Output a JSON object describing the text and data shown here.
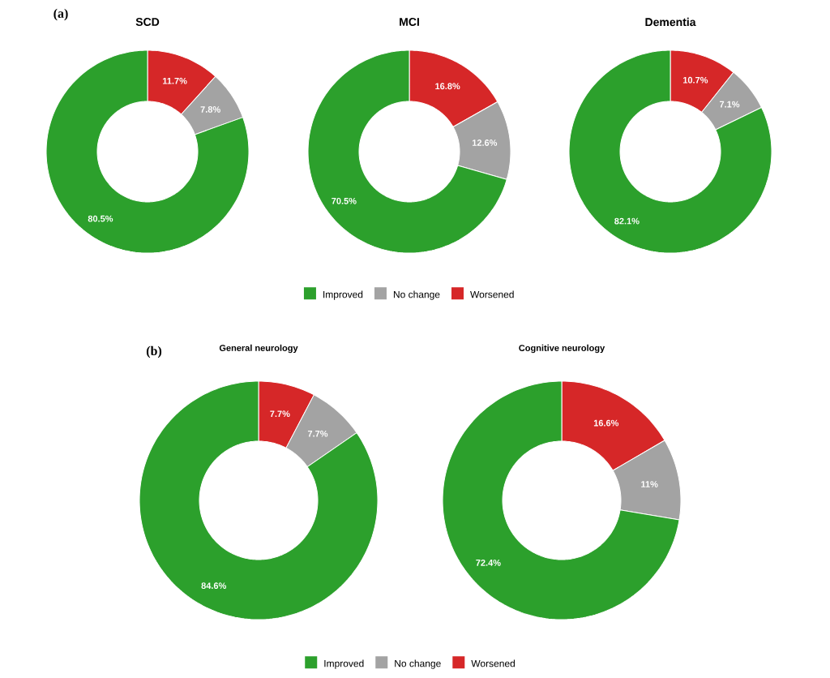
{
  "chart_data": [
    {
      "type": "donut",
      "title": "SCD",
      "annotations": [
        "(a)"
      ],
      "categories": [
        null,
        null,
        null
      ],
      "values": [
        11.7,
        7.8,
        80.5
      ],
      "value_labels": [
        "11.7%",
        "7.8%",
        "80.5%"
      ],
      "colors": [
        "#d62728",
        "#a3a3a3",
        "#2ca02c"
      ]
    },
    {
      "type": "donut",
      "title": "MCI",
      "categories": [
        "Worsened",
        "No change",
        "Improved"
      ],
      "values": [
        16.8,
        12.6,
        70.5
      ],
      "value_labels": [
        "16.8%",
        "12.6%",
        "70.5%"
      ],
      "colors": [
        "#d62728",
        "#a3a3a3",
        "#2ca02c"
      ],
      "legend": "bottom"
    },
    {
      "type": "donut",
      "title": "Dementia",
      "categories": [
        null,
        null,
        null
      ],
      "values": [
        10.7,
        7.1,
        82.1
      ],
      "value_labels": [
        "10.7%",
        "7.1%",
        "82.1%"
      ],
      "colors": [
        "#d62728",
        "#a3a3a3",
        "#2ca02c"
      ]
    },
    {
      "type": "donut",
      "title": "General neurology",
      "annotations": [
        "(b)"
      ],
      "categories": [
        "Worsened",
        "No change",
        "Improved"
      ],
      "values": [
        7.7,
        7.7,
        84.6
      ],
      "value_labels": [
        "7.7%",
        "7.7%",
        "84.6%"
      ],
      "colors": [
        "#d62728",
        "#a3a3a3",
        "#2ca02c"
      ],
      "legend": "bottom"
    },
    {
      "type": "donut",
      "title": "Cognitive neurology",
      "categories": [
        null,
        null,
        null
      ],
      "values": [
        16.6,
        11,
        72.4
      ],
      "value_labels": [
        "16.6%",
        "11%",
        "72.4%"
      ],
      "colors": [
        "#d62728",
        "#a3a3a3",
        "#2ca02c"
      ]
    }
  ]
}
